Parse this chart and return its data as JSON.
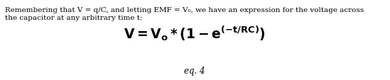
{
  "body_line1": "Remembering that V = q/C, and letting EMF = V₀, we have an expression for the voltage across",
  "body_line2": "the capacitor at any arbitrary time t:",
  "formula_mathtext": "$\\mathbf{V = V_o*(1 - e^{(-t/RC)})}$",
  "eq_label": "eq. 4",
  "background_color": "#ffffff",
  "text_color": "#000000",
  "body_fontsize": 7.5,
  "formula_fontsize": 13.5,
  "eq_fontsize": 8.5,
  "fig_width": 5.49,
  "fig_height": 1.14,
  "dpi": 100
}
